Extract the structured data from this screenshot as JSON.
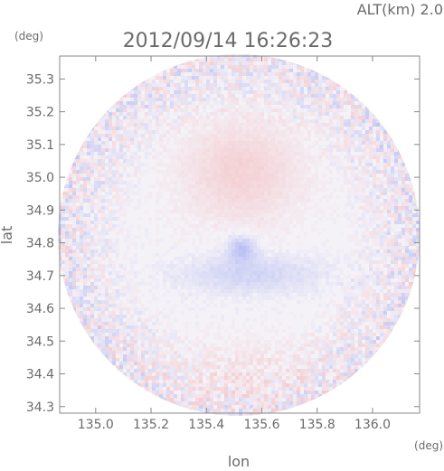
{
  "chart_data": {
    "type": "heatmap",
    "subtype": "radar-ppi",
    "header_right": "ALT(km) 2.0",
    "title": "2012/09/14 16:26:23",
    "xlabel": "lon",
    "ylabel": "lat",
    "x_unit": "(deg)",
    "y_unit": "(deg)",
    "xlim": [
      134.87,
      136.17
    ],
    "ylim": [
      34.28,
      35.37
    ],
    "x_ticks": [
      "135.0",
      "135.2",
      "135.4",
      "135.6",
      "135.8",
      "136.0"
    ],
    "y_ticks": [
      "34.3",
      "34.4",
      "34.5",
      "34.6",
      "34.7",
      "34.8",
      "34.9",
      "35.0",
      "35.1",
      "35.2",
      "35.3"
    ],
    "grid": false,
    "colorscale": {
      "negative": "#7c8cf0",
      "neutral": "#f4f1f7",
      "positive": "#f59a9a"
    },
    "regions": [
      {
        "label": "positive",
        "lon": 135.52,
        "lat": 35.02,
        "lon_radius": 0.2,
        "lat_radius": 0.15,
        "intensity": 0.35
      },
      {
        "label": "positive",
        "lon": 135.55,
        "lat": 34.4,
        "lon_radius": 0.3,
        "lat_radius": 0.1,
        "intensity": 0.15
      },
      {
        "label": "negative",
        "lon": 135.55,
        "lat": 34.71,
        "lon_radius": 0.25,
        "lat_radius": 0.06,
        "intensity": 0.28
      },
      {
        "label": "negative",
        "lon": 135.52,
        "lat": 34.79,
        "lon_radius": 0.05,
        "lat_radius": 0.04,
        "intensity": 0.45
      }
    ]
  }
}
